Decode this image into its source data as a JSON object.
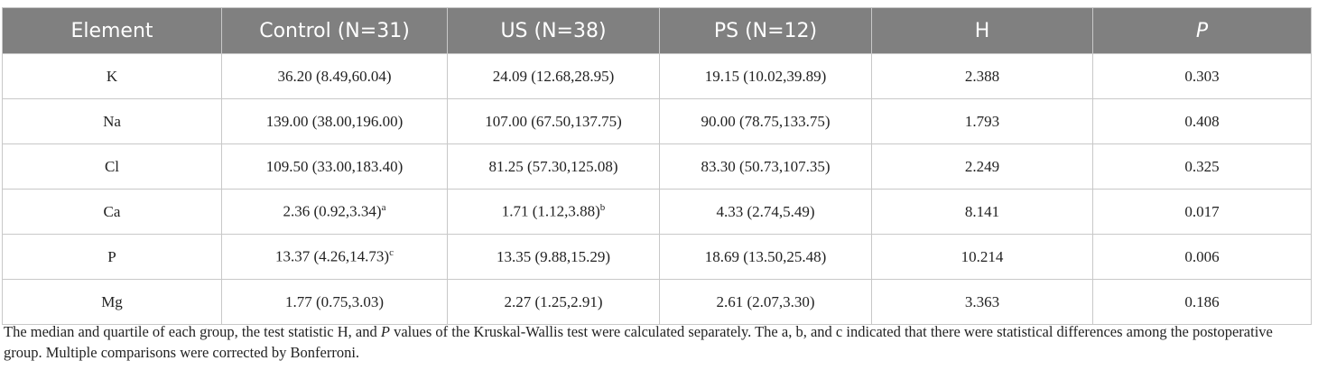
{
  "table": {
    "header": [
      "Element",
      "Control (N=31)",
      "US (N=38)",
      "PS (N=12)",
      "H",
      "P"
    ],
    "rows": [
      [
        "K",
        "36.20 (8.49,60.04)",
        "24.09 (12.68,28.95)",
        "19.15 (10.02,39.89)",
        "2.388",
        "0.303"
      ],
      [
        "Na",
        "139.00 (38.00,196.00)",
        "107.00 (67.50,137.75)",
        "90.00 (78.75,133.75)",
        "1.793",
        "0.408"
      ],
      [
        "Cl",
        "109.50 (33.00,183.40)",
        "81.25 (57.30,125.08)",
        "83.30 (50.73,107.35)",
        "2.249",
        "0.325"
      ],
      [
        "Ca",
        {
          "text": "2.36 (0.92,3.34)",
          "sup": "a"
        },
        {
          "text": "1.71 (1.12,3.88)",
          "sup": "b"
        },
        "4.33 (2.74,5.49)",
        "8.141",
        "0.017"
      ],
      [
        "P",
        {
          "text": "13.37 (4.26,14.73)",
          "sup": "c"
        },
        "13.35 (9.88,15.29)",
        "18.69 (13.50,25.48)",
        "10.214",
        "0.006"
      ],
      [
        "Mg",
        "1.77 (0.75,3.03)",
        "2.27 (1.25,2.91)",
        "2.61 (2.07,3.30)",
        "3.363",
        "0.186"
      ]
    ]
  },
  "note": [
    "The median and quartile of each group, the test statistic H, and ",
    "P",
    " values of the Kruskal-Wallis test were calculated separately. The a, b, and c indicated that there were statistical differences among the postoperative group. Multiple comparisons were corrected by Bonferroni."
  ]
}
